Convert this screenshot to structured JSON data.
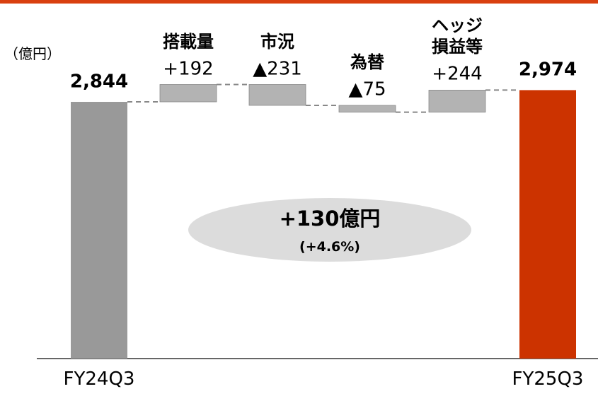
{
  "chart_data": {
    "type": "waterfall",
    "unit_label": "（億円）",
    "categories": [
      "FY24Q3",
      "搭載量",
      "市況",
      "為替",
      "ヘッジ\n損益等",
      "FY25Q3"
    ],
    "values": [
      2844,
      192,
      -231,
      -75,
      244,
      2974
    ],
    "value_labels": [
      "2,844",
      "+192",
      "▲231",
      "▲75",
      "+244",
      "2,974"
    ],
    "total_indices": [
      0,
      5
    ],
    "colors": {
      "start": "#999999",
      "end": "#cc3300",
      "step": "#b3b3b3"
    },
    "ylim": [
      0,
      3800
    ],
    "annotation": {
      "title": "+130億円",
      "subtitle": "(+4.6%)"
    }
  }
}
